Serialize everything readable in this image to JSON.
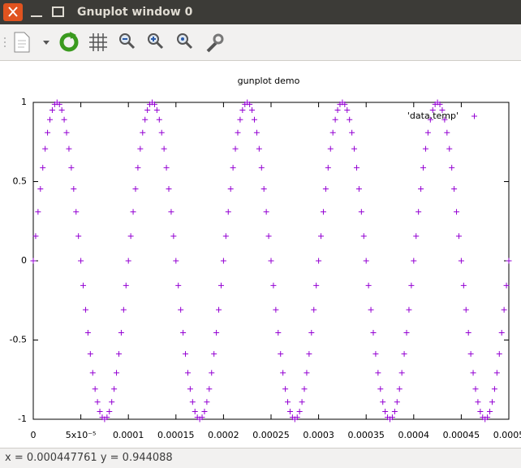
{
  "window": {
    "title": "Gnuplot window 0"
  },
  "status_bar": {
    "text": "x = 0.000447761 y = 0.944088"
  },
  "chart_data": {
    "type": "scatter",
    "title": "gunplot demo",
    "xlim": [
      0,
      0.0005
    ],
    "ylim": [
      -1,
      1
    ],
    "xticks": [
      0,
      {
        "value": 5e-05,
        "label": "5x10⁻⁵"
      },
      0.0001,
      0.00015,
      0.0002,
      0.00025,
      0.0003,
      0.00035,
      0.0004,
      0.00045,
      0.0005
    ],
    "yticks": [
      -1,
      -0.5,
      0,
      0.5,
      1
    ],
    "grid": false,
    "legend": "top-right",
    "x": [
      0,
      2.5e-06,
      5e-06,
      7.5e-06,
      1e-05,
      1.25e-05,
      1.5e-05,
      1.75e-05,
      2e-05,
      2.25e-05,
      2.5e-05,
      2.75e-05,
      3e-05,
      3.25e-05,
      3.5e-05,
      3.75e-05,
      4e-05,
      4.25e-05,
      4.5e-05,
      4.75e-05,
      5e-05,
      5.25e-05,
      5.5e-05,
      5.75e-05,
      6e-05,
      6.25e-05,
      6.5e-05,
      6.75e-05,
      7e-05,
      7.25e-05,
      7.5e-05,
      7.75e-05,
      8e-05,
      8.25e-05,
      8.5e-05,
      8.75e-05,
      9e-05,
      9.25e-05,
      9.5e-05,
      9.75e-05,
      0.0001,
      0.0001025,
      0.000105,
      0.0001075,
      0.00011,
      0.0001125,
      0.000115,
      0.0001175,
      0.00012,
      0.0001225,
      0.000125,
      0.0001275,
      0.00013,
      0.0001325,
      0.000135,
      0.0001375,
      0.00014,
      0.0001425,
      0.000145,
      0.0001475,
      0.00015,
      0.0001525,
      0.000155,
      0.0001575,
      0.00016,
      0.0001625,
      0.000165,
      0.0001675,
      0.00017,
      0.0001725,
      0.000175,
      0.0001775,
      0.00018,
      0.0001825,
      0.000185,
      0.0001875,
      0.00019,
      0.0001925,
      0.000195,
      0.0001975,
      0.0002,
      0.0002025,
      0.000205,
      0.0002075,
      0.00021,
      0.0002125,
      0.000215,
      0.0002175,
      0.00022,
      0.0002225,
      0.000225,
      0.0002275,
      0.00023,
      0.0002325,
      0.000235,
      0.0002375,
      0.00024,
      0.0002425,
      0.000245,
      0.0002475,
      0.00025,
      0.0002525,
      0.000255,
      0.0002575,
      0.00026,
      0.0002625,
      0.000265,
      0.0002675,
      0.00027,
      0.0002725,
      0.000275,
      0.0002775,
      0.00028,
      0.0002825,
      0.000285,
      0.0002875,
      0.00029,
      0.0002925,
      0.000295,
      0.0002975,
      0.0003,
      0.0003025,
      0.000305,
      0.0003075,
      0.00031,
      0.0003125,
      0.000315,
      0.0003175,
      0.00032,
      0.0003225,
      0.000325,
      0.0003275,
      0.00033,
      0.0003325,
      0.000335,
      0.0003375,
      0.00034,
      0.0003425,
      0.000345,
      0.0003475,
      0.00035,
      0.0003525,
      0.000355,
      0.0003575,
      0.00036,
      0.0003625,
      0.000365,
      0.0003675,
      0.00037,
      0.0003725,
      0.000375,
      0.0003775,
      0.00038,
      0.0003825,
      0.000385,
      0.0003875,
      0.00039,
      0.0003925,
      0.000395,
      0.0003975,
      0.0004,
      0.0004025,
      0.000405,
      0.0004075,
      0.00041,
      0.0004125,
      0.000415,
      0.0004175,
      0.00042,
      0.0004225,
      0.000425,
      0.0004275,
      0.00043,
      0.0004325,
      0.000435,
      0.0004375,
      0.00044,
      0.0004425,
      0.000445,
      0.0004475,
      0.00045,
      0.0004525,
      0.000455,
      0.0004575,
      0.00046,
      0.0004625,
      0.000465,
      0.0004675,
      0.00047,
      0.0004725,
      0.000475,
      0.0004775,
      0.00048,
      0.0004825,
      0.000485,
      0.0004875,
      0.00049,
      0.0004925,
      0.000495,
      0.0004975,
      0.0005
    ],
    "series": [
      {
        "name": "'data.temp'",
        "color": "#9400d3",
        "values": [
          0,
          0.156,
          0.309,
          0.454,
          0.588,
          0.707,
          0.809,
          0.891,
          0.951,
          0.988,
          1,
          0.988,
          0.951,
          0.891,
          0.809,
          0.707,
          0.588,
          0.454,
          0.309,
          0.156,
          0,
          -0.156,
          -0.309,
          -0.454,
          -0.588,
          -0.707,
          -0.809,
          -0.891,
          -0.951,
          -0.988,
          -1,
          -0.988,
          -0.951,
          -0.891,
          -0.809,
          -0.707,
          -0.588,
          -0.454,
          -0.309,
          -0.156,
          0,
          0.156,
          0.309,
          0.454,
          0.588,
          0.707,
          0.809,
          0.891,
          0.951,
          0.988,
          1,
          0.988,
          0.951,
          0.891,
          0.809,
          0.707,
          0.588,
          0.454,
          0.309,
          0.156,
          0,
          -0.156,
          -0.309,
          -0.454,
          -0.588,
          -0.707,
          -0.809,
          -0.891,
          -0.951,
          -0.988,
          -1,
          -0.988,
          -0.951,
          -0.891,
          -0.809,
          -0.707,
          -0.588,
          -0.454,
          -0.309,
          -0.156,
          0,
          0.156,
          0.309,
          0.454,
          0.588,
          0.707,
          0.809,
          0.891,
          0.951,
          0.988,
          1,
          0.988,
          0.951,
          0.891,
          0.809,
          0.707,
          0.588,
          0.454,
          0.309,
          0.156,
          0,
          -0.156,
          -0.309,
          -0.454,
          -0.588,
          -0.707,
          -0.809,
          -0.891,
          -0.951,
          -0.988,
          -1,
          -0.988,
          -0.951,
          -0.891,
          -0.809,
          -0.707,
          -0.588,
          -0.454,
          -0.309,
          -0.156,
          0,
          0.156,
          0.309,
          0.454,
          0.588,
          0.707,
          0.809,
          0.891,
          0.951,
          0.988,
          1,
          0.988,
          0.951,
          0.891,
          0.809,
          0.707,
          0.588,
          0.454,
          0.309,
          0.156,
          0,
          -0.156,
          -0.309,
          -0.454,
          -0.588,
          -0.707,
          -0.809,
          -0.891,
          -0.951,
          -0.988,
          -1,
          -0.988,
          -0.951,
          -0.891,
          -0.809,
          -0.707,
          -0.588,
          -0.454,
          -0.309,
          -0.156,
          0,
          0.156,
          0.309,
          0.454,
          0.588,
          0.707,
          0.809,
          0.891,
          0.951,
          0.988,
          1,
          0.988,
          0.951,
          0.891,
          0.809,
          0.707,
          0.588,
          0.454,
          0.309,
          0.156,
          0,
          -0.156,
          -0.309,
          -0.454,
          -0.588,
          -0.707,
          -0.809,
          -0.891,
          -0.951,
          -0.988,
          -1,
          -0.988,
          -0.951,
          -0.891,
          -0.809,
          -0.707,
          -0.588,
          -0.454,
          -0.309,
          -0.156,
          0
        ]
      }
    ]
  }
}
